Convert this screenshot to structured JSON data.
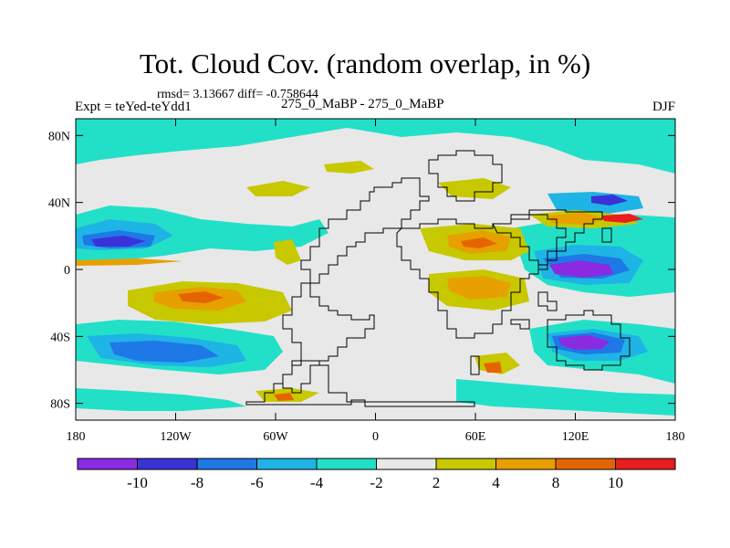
{
  "title": "Tot. Cloud Cov. (random overlap, in %)",
  "stats_line": "rmsd= 3.13667 diff= -0.758644",
  "experiment_label": "Expt = teYed-teYdd1",
  "comparison_label": "275_0_MaBP - 275_0_MaBP",
  "season": "DJF",
  "lat_ticks": [
    {
      "label": "80N",
      "lat": 80
    },
    {
      "label": "40N",
      "lat": 40
    },
    {
      "label": "0",
      "lat": 0
    },
    {
      "label": "40S",
      "lat": -40
    },
    {
      "label": "80S",
      "lat": -80
    }
  ],
  "lon_ticks": [
    {
      "label": "180",
      "lon": -180
    },
    {
      "label": "120W",
      "lon": -120
    },
    {
      "label": "60W",
      "lon": -60
    },
    {
      "label": "0",
      "lon": 0
    },
    {
      "label": "60E",
      "lon": 60
    },
    {
      "label": "120E",
      "lon": 120
    },
    {
      "label": "180",
      "lon": 180
    }
  ],
  "colorbar": {
    "colors": [
      "#8a2be2",
      "#3a32d8",
      "#1e78e6",
      "#1eb4e6",
      "#22e0c8",
      "#e8e8e8",
      "#c8c800",
      "#e6a000",
      "#e66400",
      "#e61e1e"
    ],
    "labels": [
      "-10",
      "-8",
      "-6",
      "-4",
      "-2",
      "2",
      "4",
      "8",
      "10"
    ]
  },
  "legend_colors": {
    "land_outline": "#000000",
    "neutral_fill": "#e8e8e8"
  }
}
